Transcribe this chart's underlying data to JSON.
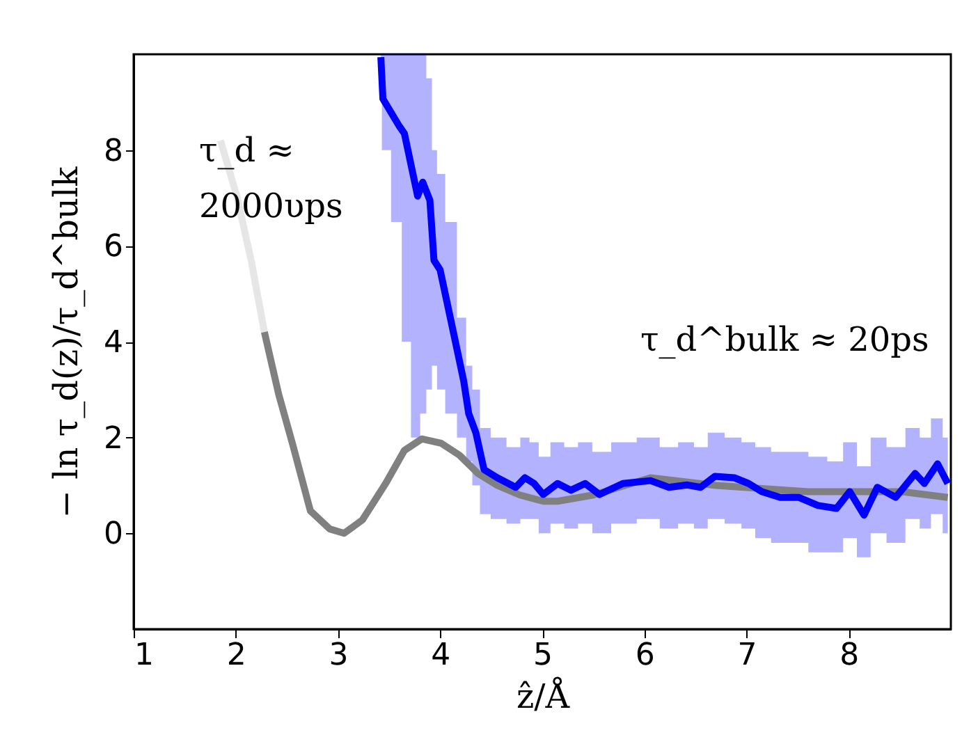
{
  "chart_data": {
    "type": "line",
    "xlabel": "ẑ/Å",
    "ylabel": "− ln τ_d(z)/τ_d^bulk",
    "xlim": [
      1,
      9
    ],
    "xticks": [
      1,
      2,
      3,
      4,
      5,
      6,
      7,
      8
    ],
    "ylim": [
      -2,
      10
    ],
    "yticks": [
      0,
      2,
      4,
      6,
      8
    ],
    "grid": false,
    "marker": "none",
    "line_style": "solid",
    "annotations": [
      "τ_d ≈\n2000υps",
      "τ_d^bulk ≈ 20ps"
    ],
    "series": [
      {
        "color": "#e6e6e6",
        "x": [
          1.85,
          2.01,
          2.15,
          2.28
        ],
        "values": [
          8.2,
          7.04,
          5.7,
          4.2
        ]
      },
      {
        "color": "#808080",
        "x": [
          2.28,
          2.42,
          2.56,
          2.73,
          2.92,
          3.06,
          3.24,
          3.47,
          3.65,
          3.82,
          4.01,
          4.19,
          4.37,
          4.56,
          4.78,
          5.01,
          5.15,
          5.5,
          6.06,
          6.7,
          7.6,
          8.52,
          8.97
        ],
        "values": [
          4.2,
          2.9,
          1.83,
          0.47,
          0.09,
          0.0,
          0.28,
          1.05,
          1.73,
          1.97,
          1.88,
          1.63,
          1.25,
          1.0,
          0.8,
          0.67,
          0.67,
          0.8,
          1.16,
          1.0,
          0.87,
          0.87,
          0.75
        ]
      },
      {
        "color": "#0000ff",
        "x": [
          3.42,
          3.44,
          3.6,
          3.65,
          3.78,
          3.83,
          3.9,
          3.94,
          4.0,
          4.1,
          4.23,
          4.28,
          4.35,
          4.43,
          4.56,
          4.74,
          4.83,
          4.92,
          5.01,
          5.15,
          5.28,
          5.42,
          5.56,
          5.79,
          6.06,
          6.24,
          6.42,
          6.55,
          6.69,
          6.88,
          7.02,
          7.15,
          7.33,
          7.51,
          7.7,
          7.88,
          8.01,
          8.15,
          8.28,
          8.46,
          8.65,
          8.74,
          8.87,
          8.97
        ],
        "values": [
          9.94,
          9.07,
          8.5,
          8.35,
          7.04,
          7.33,
          6.95,
          5.7,
          5.5,
          4.5,
          3.19,
          2.5,
          2.1,
          1.33,
          1.16,
          0.96,
          1.16,
          1.04,
          0.81,
          1.04,
          0.9,
          1.04,
          0.81,
          1.04,
          1.1,
          0.96,
          1.01,
          0.96,
          1.19,
          1.16,
          1.04,
          0.87,
          0.75,
          0.75,
          0.58,
          0.52,
          0.87,
          0.38,
          0.96,
          0.75,
          1.25,
          1.04,
          1.45,
          1.04
        ],
        "lower": [
          9.0,
          8.0,
          6.5,
          4.0,
          2.0,
          2.5,
          3.0,
          3.5,
          3.0,
          2.5,
          2.0,
          1.5,
          1.0,
          0.4,
          0.3,
          0.2,
          0.3,
          0.3,
          0.0,
          0.2,
          0.1,
          0.2,
          0.0,
          0.2,
          0.3,
          0.1,
          0.2,
          0.1,
          0.3,
          0.2,
          0.1,
          -0.1,
          -0.2,
          -0.2,
          -0.4,
          -0.4,
          -0.1,
          -0.5,
          0.0,
          -0.2,
          0.3,
          0.1,
          0.4,
          0.0
        ],
        "upper": [
          10.0,
          10.0,
          10.0,
          10.0,
          10.0,
          10.0,
          9.5,
          8.0,
          7.5,
          6.5,
          4.5,
          3.5,
          3.0,
          2.2,
          2.0,
          1.8,
          2.0,
          1.9,
          1.6,
          1.9,
          1.8,
          1.9,
          1.7,
          1.9,
          2.0,
          1.8,
          1.9,
          1.8,
          2.1,
          2.0,
          1.9,
          1.8,
          1.7,
          1.7,
          1.6,
          1.5,
          1.9,
          1.4,
          2.0,
          1.8,
          2.2,
          2.0,
          2.4,
          2.0
        ]
      }
    ]
  }
}
